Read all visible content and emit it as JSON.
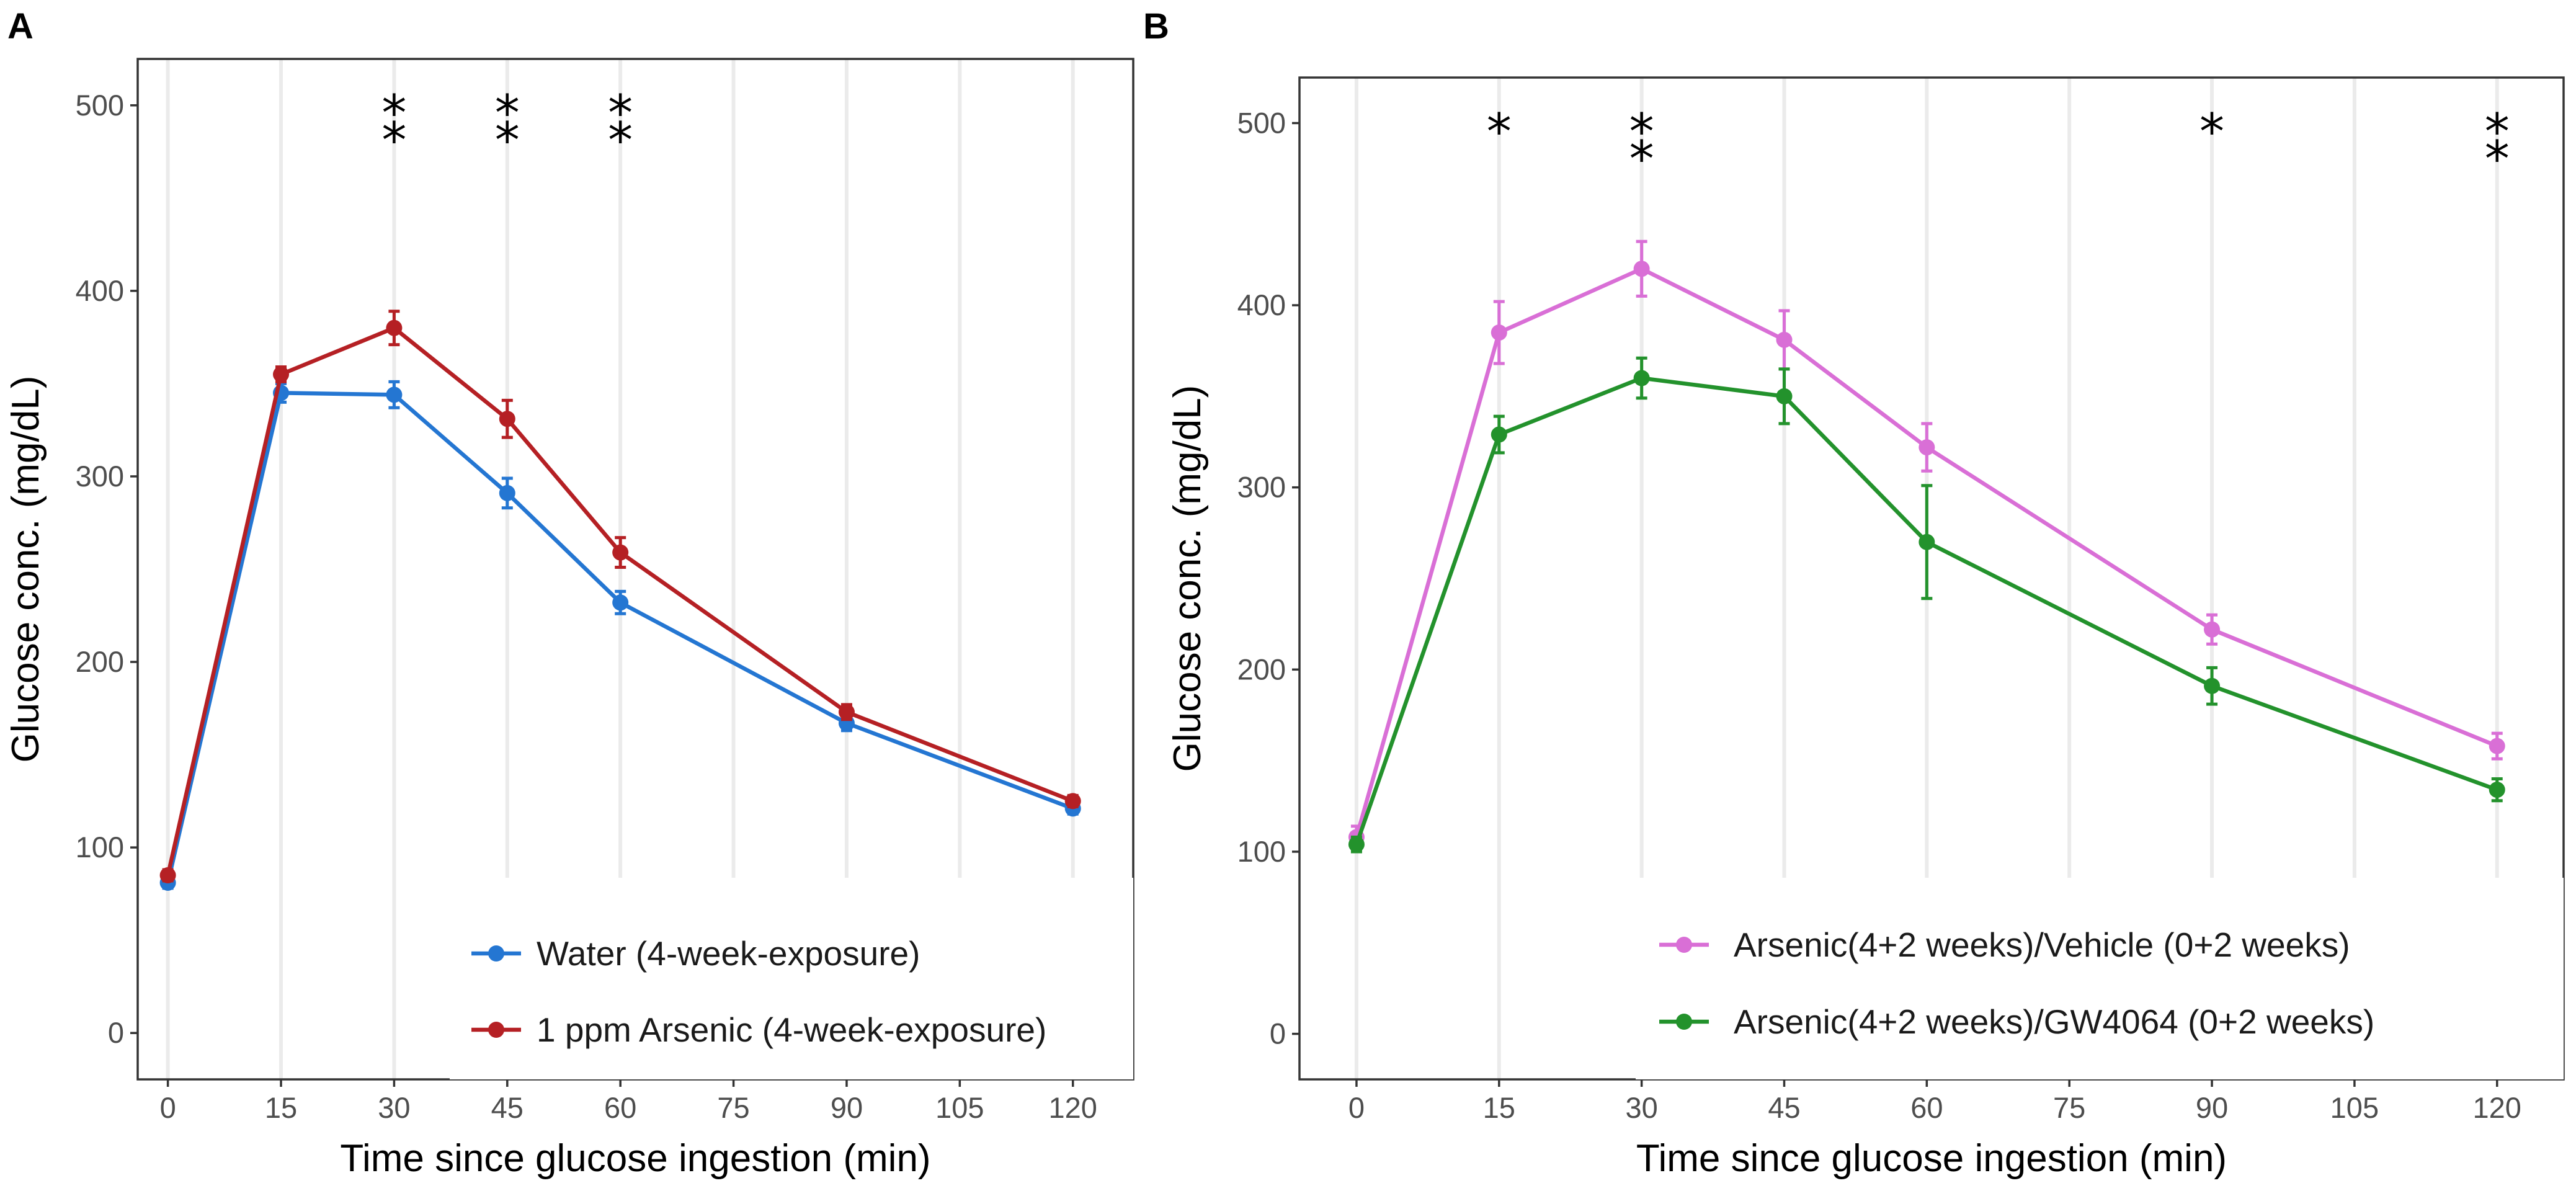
{
  "chart_data": [
    {
      "panel": "A",
      "type": "line",
      "xlabel": "Time since glucose ingestion (min)",
      "ylabel": "Glucose conc. (mg/dL)",
      "x_ticks": [
        "0",
        "15",
        "30",
        "45",
        "60",
        "75",
        "90",
        "105",
        "120"
      ],
      "y_ticks": [
        "0",
        "100",
        "200",
        "300",
        "400",
        "500"
      ],
      "xlim": [
        -4,
        128
      ],
      "ylim": [
        -25,
        525
      ],
      "grid_x": [
        0,
        15,
        30,
        45,
        60,
        75,
        90,
        105,
        120
      ],
      "legend_position": "bottom-right",
      "significance": [
        {
          "x": 30,
          "label": "**"
        },
        {
          "x": 45,
          "label": "**"
        },
        {
          "x": 60,
          "label": "**"
        }
      ],
      "series": [
        {
          "name": "Water (4-week-exposure)",
          "color": "#2476d2",
          "x": [
            0,
            15,
            30,
            45,
            60,
            90,
            120
          ],
          "y": [
            81,
            345,
            344,
            291,
            232,
            167,
            121
          ],
          "err": [
            3,
            5,
            7,
            8,
            6,
            4,
            3
          ]
        },
        {
          "name": "1 ppm Arsenic (4-week-exposure)",
          "color": "#b52024",
          "x": [
            0,
            15,
            30,
            45,
            60,
            90,
            120
          ],
          "y": [
            85,
            355,
            380,
            331,
            259,
            173,
            125
          ],
          "err": [
            3,
            4,
            9,
            10,
            8,
            4,
            3
          ]
        }
      ]
    },
    {
      "panel": "B",
      "type": "line",
      "xlabel": "Time since glucose ingestion (min)",
      "ylabel": "Glucose conc. (mg/dL)",
      "x_ticks": [
        "0",
        "15",
        "30",
        "45",
        "60",
        "75",
        "90",
        "105",
        "120"
      ],
      "y_ticks": [
        "0",
        "100",
        "200",
        "300",
        "400",
        "500"
      ],
      "xlim": [
        -6,
        127
      ],
      "ylim": [
        -25,
        525
      ],
      "grid_x": [
        0,
        15,
        30,
        45,
        60,
        75,
        90,
        105,
        120
      ],
      "legend_position": "bottom-right",
      "significance": [
        {
          "x": 15,
          "label": "*"
        },
        {
          "x": 30,
          "label": "**"
        },
        {
          "x": 90,
          "label": "*"
        },
        {
          "x": 120,
          "label": "**"
        }
      ],
      "series": [
        {
          "name": "Arsenic(4+2 weeks)/Vehicle (0+2 weeks)",
          "color": "#d96fd6",
          "x": [
            0,
            15,
            30,
            45,
            60,
            90,
            120
          ],
          "y": [
            108,
            385,
            420,
            381,
            322,
            222,
            158
          ],
          "err": [
            6,
            17,
            15,
            16,
            13,
            8,
            7
          ]
        },
        {
          "name": "Arsenic(4+2 weeks)/GW4064 (0+2 weeks)",
          "color": "#23922c",
          "x": [
            0,
            15,
            30,
            45,
            60,
            90,
            120
          ],
          "y": [
            104,
            329,
            360,
            350,
            270,
            191,
            134
          ],
          "err": [
            4,
            10,
            11,
            15,
            31,
            10,
            6
          ]
        }
      ]
    }
  ]
}
